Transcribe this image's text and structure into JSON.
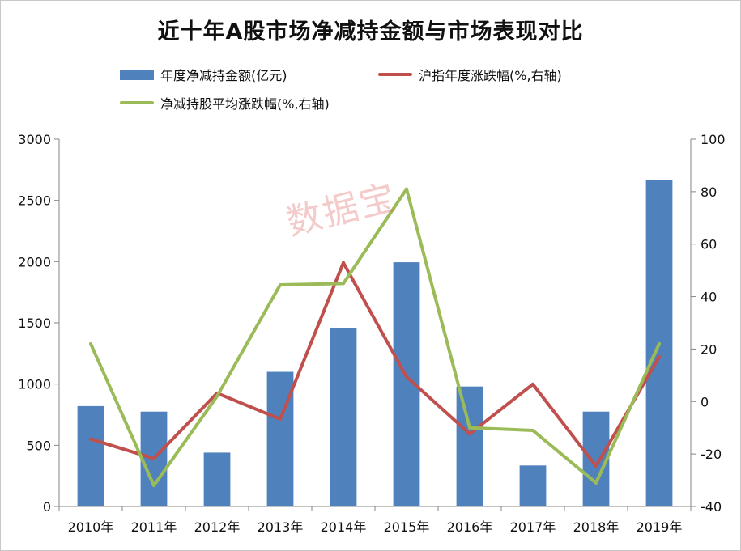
{
  "title": "近十年A股市场净减持金额与市场表现对比",
  "legend": {
    "bar": "年度净减持金额(亿元)",
    "line_index": "沪指年度涨跌幅(%,右轴)",
    "line_avg": "净减持股平均涨跌幅(%,右轴)"
  },
  "watermark": "数据宝",
  "colors": {
    "bar": "#4f81bd",
    "line_index": "#c0504d",
    "line_avg": "#9bbb59"
  },
  "chart_data": {
    "type": "bar",
    "title": "近十年A股市场净减持金额与市场表现对比",
    "categories": [
      "2010年",
      "2011年",
      "2012年",
      "2013年",
      "2014年",
      "2015年",
      "2016年",
      "2017年",
      "2018年",
      "2019年"
    ],
    "y_left": {
      "ylim": [
        0,
        3000
      ],
      "ticks": [
        0,
        500,
        1000,
        1500,
        2000,
        2500,
        3000
      ]
    },
    "y_right": {
      "ylim": [
        -40,
        100
      ],
      "ticks": [
        -40,
        -20,
        0,
        20,
        40,
        60,
        80,
        100
      ]
    },
    "series": [
      {
        "name": "年度净减持金额(亿元)",
        "type": "bar",
        "axis": "left",
        "values": [
          820,
          775,
          440,
          1100,
          1455,
          1995,
          980,
          335,
          775,
          2665
        ]
      },
      {
        "name": "沪指年度涨跌幅(%,右轴)",
        "type": "line",
        "axis": "right",
        "values": [
          -14.3,
          -21.7,
          3.2,
          -6.7,
          52.9,
          9.4,
          -12.3,
          6.6,
          -24.6,
          17.0
        ]
      },
      {
        "name": "净减持股平均涨跌幅(%,右轴)",
        "type": "line",
        "axis": "right",
        "values": [
          22,
          -32,
          2,
          44.5,
          45,
          81,
          -10,
          -11,
          -31,
          22
        ]
      }
    ]
  }
}
